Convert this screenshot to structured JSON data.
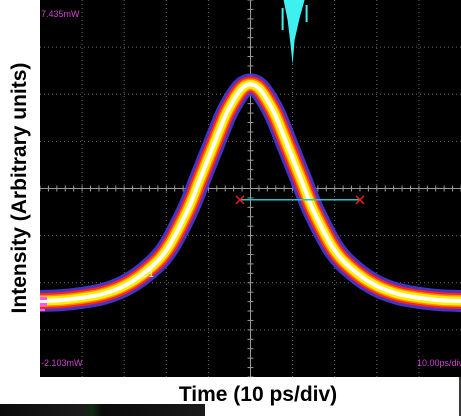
{
  "chart_data": {
    "type": "line",
    "title": "",
    "xlabel": "Time (10 ps/div)",
    "ylabel": "Intensity (Arbitrary units)",
    "xlim": [
      -50,
      50
    ],
    "ylim": [
      -2.103,
      7.435
    ],
    "grid": true,
    "series": [
      {
        "values_x": [
          -50,
          -45,
          -40,
          -35,
          -30,
          -25,
          -20,
          -15,
          -12,
          -9,
          -6,
          -4,
          -2,
          0,
          2,
          4,
          6,
          9,
          12,
          15,
          20,
          25,
          30,
          35,
          40,
          45,
          50
        ],
        "values_y": [
          -0.18,
          -0.16,
          -0.1,
          0.0,
          0.2,
          0.55,
          1.1,
          2.1,
          2.9,
          3.7,
          4.5,
          4.9,
          5.2,
          5.3,
          5.2,
          4.9,
          4.5,
          3.7,
          2.9,
          2.1,
          1.1,
          0.55,
          0.2,
          0.0,
          -0.1,
          -0.16,
          -0.18
        ]
      }
    ],
    "marker_line": {
      "x_start": -2.5,
      "x_end": 26,
      "y": 2.38
    },
    "top_burst": {
      "x": 10,
      "y_from": 7.435,
      "y_to": 5.8
    }
  },
  "readouts": {
    "top_left": "7.435mW",
    "bottom_left": "-2.103mW",
    "bottom_right": "10.00ps/div",
    "channel": "C1"
  },
  "colors": {
    "background": "#000000",
    "grid": "#6a6a6a",
    "trace_core": "#ffffff",
    "trace_inner": "#ffee00",
    "trace_mid": "#ff2222",
    "trace_outer": "#4a3ad8",
    "marker": "#1ec8c8",
    "marker_end": "#e02020",
    "readout": "#d040d0",
    "burst": "#3ff0f0"
  }
}
